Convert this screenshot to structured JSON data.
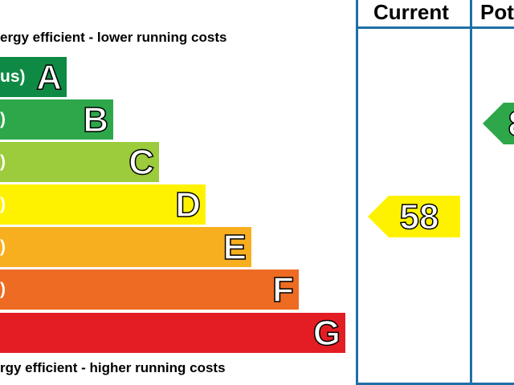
{
  "chart_data": {
    "type": "bar",
    "captions": {
      "top": "ergy efficient - lower running costs",
      "bottom": "rgy efficient - higher running costs"
    },
    "bands": [
      {
        "letter": "A",
        "range": "us)",
        "color": "#0f8a45"
      },
      {
        "letter": "B",
        "range": ")",
        "color": "#2da74a"
      },
      {
        "letter": "C",
        "range": ")",
        "color": "#9ccb3b"
      },
      {
        "letter": "D",
        "range": ")",
        "color": "#fff200"
      },
      {
        "letter": "E",
        "range": ")",
        "color": "#f7af1f"
      },
      {
        "letter": "F",
        "range": ")",
        "color": "#ee6b23"
      },
      {
        "letter": "G",
        "range": "",
        "color": "#e31d23"
      }
    ],
    "columns": {
      "current": "Current",
      "potential": "Pot"
    },
    "current_rating": {
      "value": 58,
      "label": "58",
      "color": "#fff200"
    },
    "potential_rating": {
      "value": "8",
      "label": "8",
      "color": "#2da74a"
    }
  }
}
